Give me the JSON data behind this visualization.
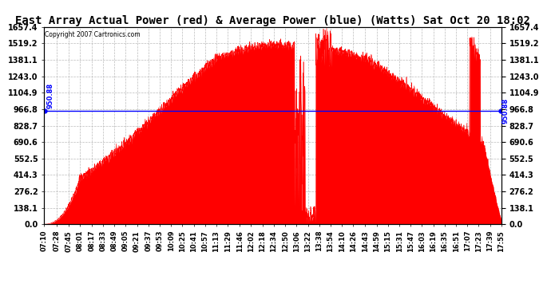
{
  "title": "East Array Actual Power (red) & Average Power (blue) (Watts) Sat Oct 20 18:02",
  "copyright": "Copyright 2007 Cartronics.com",
  "average_power": 950.88,
  "ymax": 1657.4,
  "yticks": [
    0.0,
    138.1,
    276.2,
    414.3,
    552.5,
    690.6,
    828.7,
    966.8,
    1104.9,
    1243.0,
    1381.1,
    1519.2,
    1657.4
  ],
  "fill_color": "#FF0000",
  "avg_line_color": "#0000FF",
  "bg_color": "#FFFFFF",
  "grid_color": "#BBBBBB",
  "title_fontsize": 10,
  "xlabel_fontsize": 6,
  "ylabel_fontsize": 7,
  "x_labels": [
    "07:10",
    "07:28",
    "07:45",
    "08:01",
    "08:17",
    "08:33",
    "08:49",
    "09:05",
    "09:21",
    "09:37",
    "09:53",
    "10:09",
    "10:25",
    "10:41",
    "10:57",
    "11:13",
    "11:29",
    "11:46",
    "12:02",
    "12:18",
    "12:34",
    "12:50",
    "13:06",
    "13:22",
    "13:38",
    "13:54",
    "14:10",
    "14:26",
    "14:43",
    "14:59",
    "15:15",
    "15:31",
    "15:47",
    "16:03",
    "16:19",
    "16:35",
    "16:51",
    "17:07",
    "17:23",
    "17:39",
    "17:55"
  ]
}
